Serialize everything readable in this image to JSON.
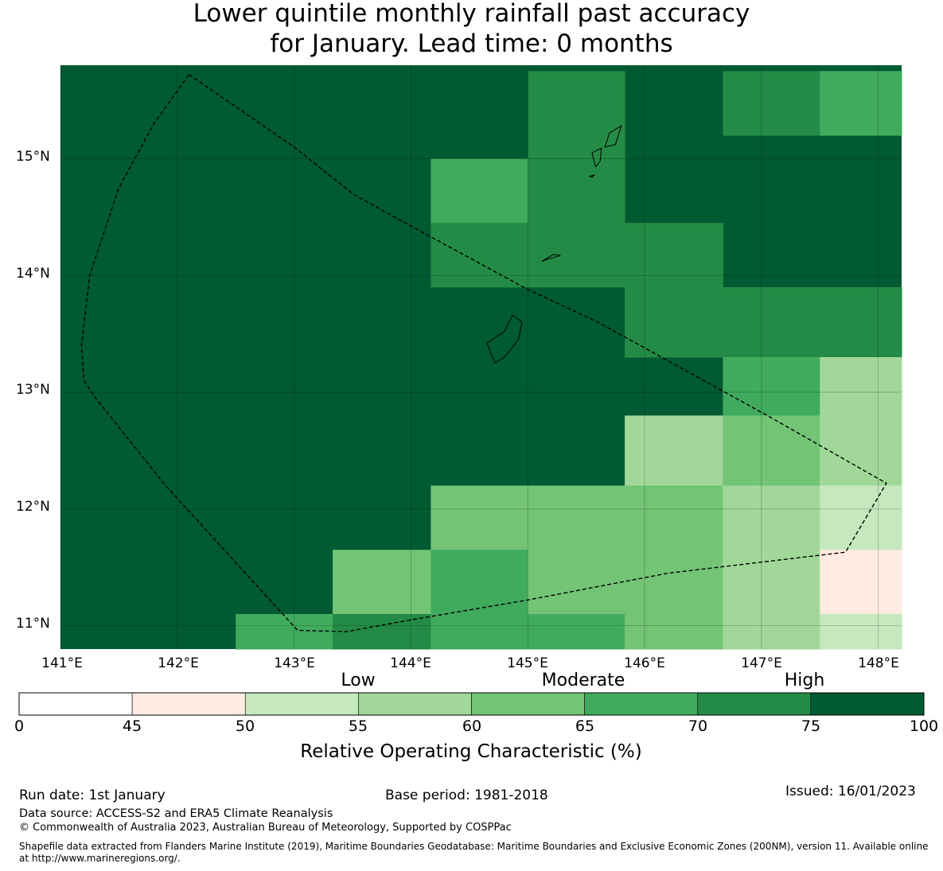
{
  "title": {
    "line1": "Lower quintile monthly rainfall past accuracy",
    "line2": "for January. Lead time: 0 months"
  },
  "map": {
    "lon_range": [
      141.0,
      148.2
    ],
    "lat_range": [
      10.8,
      15.8
    ],
    "x_ticks": [
      "141°E",
      "142°E",
      "143°E",
      "144°E",
      "145°E",
      "146°E",
      "147°E",
      "148°E"
    ],
    "y_ticks": [
      "15°N",
      "14°N",
      "13°N",
      "12°N",
      "11°N"
    ],
    "background_value": 80,
    "cells": [
      {
        "lon": [
          145.0,
          145.83
        ],
        "lat": [
          15.2,
          15.75
        ],
        "value": 72
      },
      {
        "lon": [
          146.67,
          147.5
        ],
        "lat": [
          15.2,
          15.75
        ],
        "value": 72
      },
      {
        "lon": [
          147.5,
          148.2
        ],
        "lat": [
          15.2,
          15.75
        ],
        "value": 67
      },
      {
        "lon": [
          144.17,
          145.0
        ],
        "lat": [
          14.45,
          15.0
        ],
        "value": 67
      },
      {
        "lon": [
          145.0,
          145.83
        ],
        "lat": [
          14.45,
          15.2
        ],
        "value": 72
      },
      {
        "lon": [
          144.17,
          145.0
        ],
        "lat": [
          13.9,
          14.45
        ],
        "value": 72
      },
      {
        "lon": [
          145.0,
          145.83
        ],
        "lat": [
          13.9,
          14.45
        ],
        "value": 72
      },
      {
        "lon": [
          145.83,
          146.67
        ],
        "lat": [
          13.9,
          14.45
        ],
        "value": 72
      },
      {
        "lon": [
          145.83,
          146.67
        ],
        "lat": [
          13.3,
          13.9
        ],
        "value": 72
      },
      {
        "lon": [
          146.67,
          147.5
        ],
        "lat": [
          13.3,
          13.9
        ],
        "value": 72
      },
      {
        "lon": [
          147.5,
          148.2
        ],
        "lat": [
          13.3,
          13.9
        ],
        "value": 72
      },
      {
        "lon": [
          146.67,
          147.5
        ],
        "lat": [
          12.8,
          13.3
        ],
        "value": 67
      },
      {
        "lon": [
          147.5,
          148.2
        ],
        "lat": [
          12.8,
          13.3
        ],
        "value": 57
      },
      {
        "lon": [
          145.83,
          146.67
        ],
        "lat": [
          12.2,
          12.8
        ],
        "value": 57
      },
      {
        "lon": [
          146.67,
          147.5
        ],
        "lat": [
          12.2,
          12.8
        ],
        "value": 62
      },
      {
        "lon": [
          147.5,
          148.2
        ],
        "lat": [
          12.2,
          12.8
        ],
        "value": 57
      },
      {
        "lon": [
          144.17,
          145.0
        ],
        "lat": [
          11.65,
          12.2
        ],
        "value": 62
      },
      {
        "lon": [
          145.0,
          145.83
        ],
        "lat": [
          11.65,
          12.2
        ],
        "value": 62
      },
      {
        "lon": [
          145.83,
          146.67
        ],
        "lat": [
          11.65,
          12.2
        ],
        "value": 62
      },
      {
        "lon": [
          146.67,
          147.5
        ],
        "lat": [
          11.65,
          12.2
        ],
        "value": 57
      },
      {
        "lon": [
          147.5,
          148.2
        ],
        "lat": [
          11.65,
          12.2
        ],
        "value": 52
      },
      {
        "lon": [
          143.33,
          144.17
        ],
        "lat": [
          11.1,
          11.65
        ],
        "value": 62
      },
      {
        "lon": [
          144.17,
          145.0
        ],
        "lat": [
          11.1,
          11.65
        ],
        "value": 67
      },
      {
        "lon": [
          145.0,
          145.83
        ],
        "lat": [
          11.1,
          11.65
        ],
        "value": 62
      },
      {
        "lon": [
          145.83,
          146.67
        ],
        "lat": [
          11.1,
          11.65
        ],
        "value": 62
      },
      {
        "lon": [
          146.67,
          147.5
        ],
        "lat": [
          11.1,
          11.65
        ],
        "value": 57
      },
      {
        "lon": [
          147.5,
          148.2
        ],
        "lat": [
          11.1,
          11.65
        ],
        "value": 47
      },
      {
        "lon": [
          142.5,
          143.33
        ],
        "lat": [
          10.8,
          11.1
        ],
        "value": 67
      },
      {
        "lon": [
          143.33,
          144.17
        ],
        "lat": [
          10.8,
          11.1
        ],
        "value": 72
      },
      {
        "lon": [
          144.17,
          145.0
        ],
        "lat": [
          10.8,
          11.1
        ],
        "value": 67
      },
      {
        "lon": [
          145.0,
          145.83
        ],
        "lat": [
          10.8,
          11.1
        ],
        "value": 67
      },
      {
        "lon": [
          145.83,
          146.67
        ],
        "lat": [
          10.8,
          11.1
        ],
        "value": 62
      },
      {
        "lon": [
          146.67,
          147.5
        ],
        "lat": [
          10.8,
          11.1
        ],
        "value": 57
      },
      {
        "lon": [
          147.5,
          148.2
        ],
        "lat": [
          10.8,
          11.1
        ],
        "value": 52
      }
    ],
    "eez_boundary": [
      [
        142.1,
        15.72
      ],
      [
        143.0,
        15.1
      ],
      [
        143.5,
        14.7
      ],
      [
        143.95,
        14.45
      ],
      [
        145.0,
        13.88
      ],
      [
        145.6,
        13.6
      ],
      [
        147.05,
        12.8
      ],
      [
        148.07,
        12.22
      ],
      [
        147.72,
        11.63
      ],
      [
        146.2,
        11.45
      ],
      [
        145.0,
        11.22
      ],
      [
        144.0,
        11.05
      ],
      [
        143.45,
        10.95
      ],
      [
        143.03,
        10.96
      ],
      [
        141.9,
        12.2
      ],
      [
        141.3,
        12.95
      ],
      [
        141.2,
        13.1
      ],
      [
        141.18,
        13.4
      ],
      [
        141.25,
        14.0
      ],
      [
        141.5,
        14.75
      ],
      [
        141.8,
        15.3
      ],
      [
        142.1,
        15.72
      ]
    ],
    "islands": [
      {
        "name": "Guam",
        "coords": [
          [
            144.72,
            13.25
          ],
          [
            144.65,
            13.42
          ],
          [
            144.8,
            13.52
          ],
          [
            144.87,
            13.66
          ],
          [
            144.95,
            13.6
          ],
          [
            144.92,
            13.45
          ],
          [
            144.8,
            13.3
          ],
          [
            144.72,
            13.25
          ]
        ]
      },
      {
        "name": "Rota",
        "coords": [
          [
            145.12,
            14.12
          ],
          [
            145.22,
            14.18
          ],
          [
            145.28,
            14.17
          ],
          [
            145.17,
            14.14
          ],
          [
            145.12,
            14.12
          ]
        ]
      },
      {
        "name": "Tinian",
        "coords": [
          [
            145.58,
            14.93
          ],
          [
            145.55,
            15.05
          ],
          [
            145.63,
            15.09
          ],
          [
            145.62,
            14.98
          ],
          [
            145.58,
            14.93
          ]
        ]
      },
      {
        "name": "Saipan",
        "coords": [
          [
            145.66,
            15.1
          ],
          [
            145.7,
            15.22
          ],
          [
            145.8,
            15.28
          ],
          [
            145.75,
            15.12
          ],
          [
            145.66,
            15.1
          ]
        ]
      },
      {
        "name": "Aguijan",
        "coords": [
          [
            145.53,
            14.85
          ],
          [
            145.57,
            14.86
          ],
          [
            145.55,
            14.84
          ],
          [
            145.53,
            14.85
          ]
        ]
      }
    ]
  },
  "colorbar": {
    "categories": [
      "Low",
      "Moderate",
      "High"
    ],
    "ticks": [
      "0",
      "45",
      "50",
      "55",
      "60",
      "65",
      "70",
      "75",
      "100"
    ],
    "bins": [
      {
        "from": 0,
        "to": 45,
        "color": "#ffffff"
      },
      {
        "from": 45,
        "to": 50,
        "color": "#ffebe2"
      },
      {
        "from": 50,
        "to": 55,
        "color": "#c6e8bf"
      },
      {
        "from": 55,
        "to": 60,
        "color": "#a1d899"
      },
      {
        "from": 60,
        "to": 65,
        "color": "#74c476"
      },
      {
        "from": 65,
        "to": 70,
        "color": "#41ab5d"
      },
      {
        "from": 70,
        "to": 75,
        "color": "#238b45"
      },
      {
        "from": 75,
        "to": 100,
        "color": "#005a32"
      }
    ],
    "label": "Relative Operating Characteristic (%)"
  },
  "footer": {
    "run_date": "Run date: 1st January",
    "base_period": "Base period: 1981-2018",
    "issued": "Issued: 16/01/2023",
    "data_source": "Data source: ACCESS-S2 and ERA5 Climate Reanalysis",
    "copyright": "© Commonwealth of Australia 2023, Australian Bureau of Meteorology, Supported by COSPPac",
    "shapefile": "Shapefile data extracted from Flanders Marine Institute (2019), Maritime Boundaries Geodatabase: Maritime Boundaries and Exclusive Economic Zones (200NM), version 11. Available online at http://www.marineregions.org/."
  }
}
